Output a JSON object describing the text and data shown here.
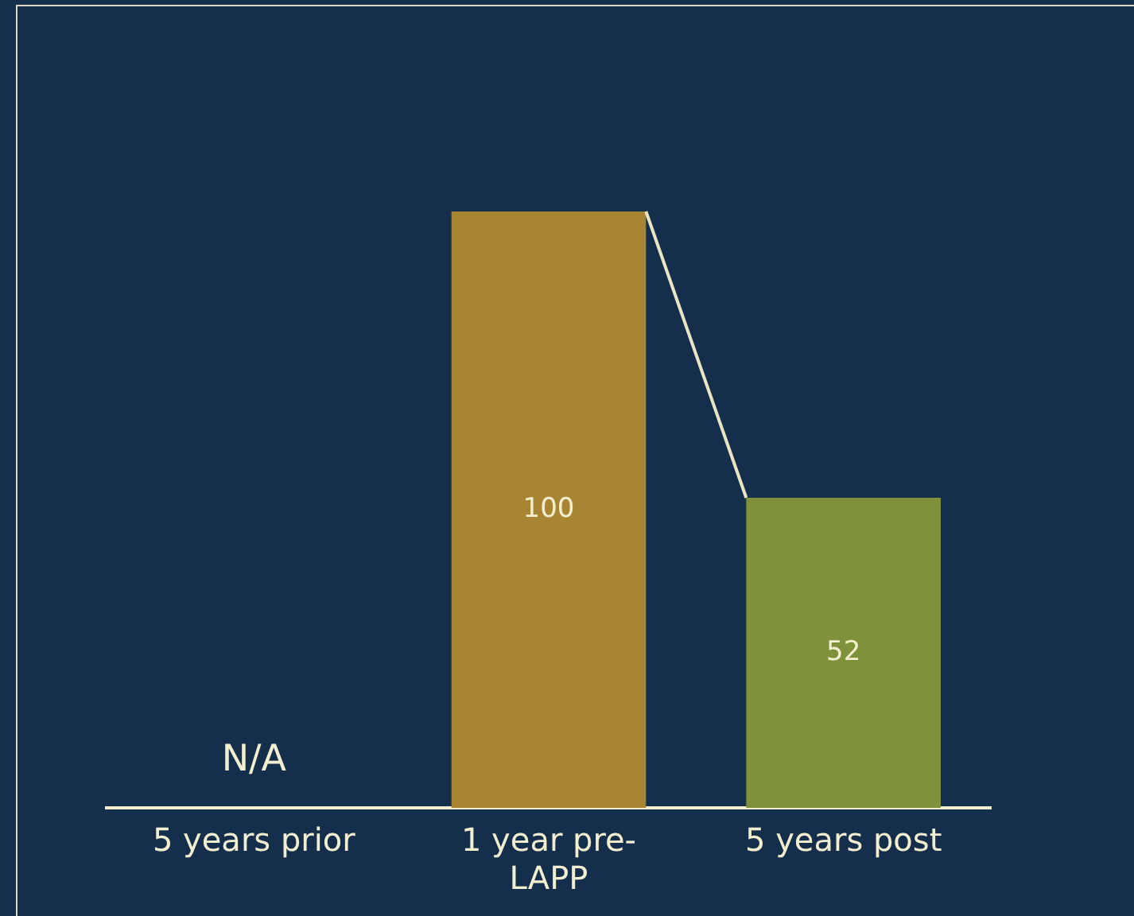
{
  "chart_data": {
    "type": "bar",
    "categories": [
      "5 years prior",
      "1 year pre-LAPP",
      "5 years post"
    ],
    "values": [
      null,
      100,
      52
    ],
    "colors": [
      "#a88533",
      "#a88533",
      "#7f913a"
    ],
    "ylim": [
      0,
      100
    ],
    "data_labels": true,
    "annotations": [
      "N/A"
    ],
    "legend": false,
    "grid": false
  }
}
